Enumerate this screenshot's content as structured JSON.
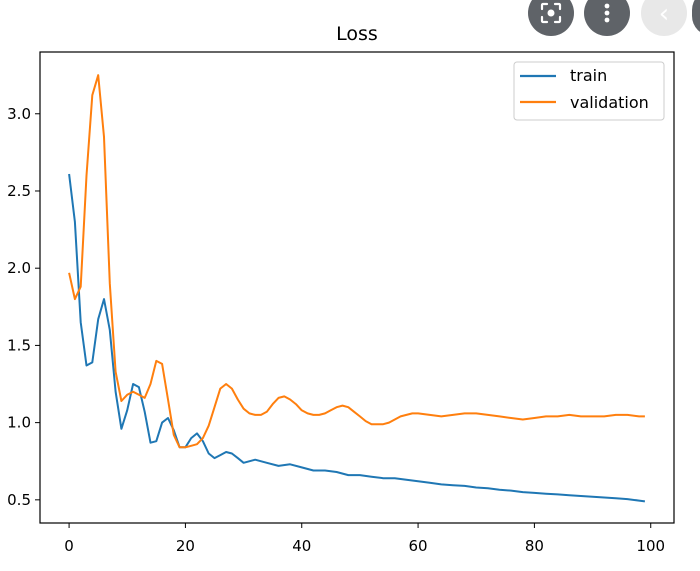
{
  "chart_data": {
    "type": "line",
    "title": "Loss",
    "xlabel": "",
    "ylabel": "",
    "xlim": [
      -5,
      104
    ],
    "ylim": [
      0.35,
      3.4
    ],
    "xticks": [
      0,
      20,
      40,
      60,
      80,
      100
    ],
    "yticks": [
      0.5,
      1.0,
      1.5,
      2.0,
      2.5,
      3.0
    ],
    "xtick_labels": [
      "0",
      "20",
      "40",
      "60",
      "80",
      "100"
    ],
    "ytick_labels": [
      "0.5",
      "1.0",
      "1.5",
      "2.0",
      "2.5",
      "3.0"
    ],
    "legend_position": "top-right",
    "grid": false,
    "series": [
      {
        "name": "train",
        "color": "#1f77b4",
        "x": [
          0,
          1,
          2,
          3,
          4,
          5,
          6,
          7,
          8,
          9,
          10,
          11,
          12,
          13,
          14,
          15,
          16,
          17,
          18,
          19,
          20,
          21,
          22,
          23,
          24,
          25,
          26,
          27,
          28,
          29,
          30,
          32,
          34,
          36,
          38,
          40,
          42,
          44,
          46,
          48,
          50,
          52,
          54,
          56,
          58,
          60,
          62,
          64,
          66,
          68,
          70,
          72,
          74,
          76,
          78,
          80,
          82,
          84,
          86,
          88,
          90,
          92,
          94,
          96,
          98,
          99
        ],
        "values": [
          2.61,
          2.3,
          1.65,
          1.37,
          1.39,
          1.67,
          1.8,
          1.6,
          1.2,
          0.96,
          1.08,
          1.25,
          1.23,
          1.07,
          0.87,
          0.88,
          1.0,
          1.03,
          0.95,
          0.84,
          0.84,
          0.9,
          0.93,
          0.88,
          0.8,
          0.77,
          0.79,
          0.81,
          0.8,
          0.77,
          0.74,
          0.76,
          0.74,
          0.72,
          0.73,
          0.71,
          0.69,
          0.69,
          0.68,
          0.66,
          0.66,
          0.65,
          0.64,
          0.64,
          0.63,
          0.62,
          0.61,
          0.6,
          0.595,
          0.59,
          0.58,
          0.575,
          0.565,
          0.56,
          0.55,
          0.545,
          0.54,
          0.535,
          0.53,
          0.525,
          0.52,
          0.515,
          0.51,
          0.505,
          0.495,
          0.49
        ]
      },
      {
        "name": "validation",
        "color": "#ff7f0e",
        "x": [
          0,
          1,
          2,
          3,
          4,
          5,
          6,
          7,
          8,
          9,
          10,
          11,
          12,
          13,
          14,
          15,
          16,
          17,
          18,
          19,
          20,
          21,
          22,
          23,
          24,
          25,
          26,
          27,
          28,
          29,
          30,
          31,
          32,
          33,
          34,
          35,
          36,
          37,
          38,
          39,
          40,
          41,
          42,
          43,
          44,
          45,
          46,
          47,
          48,
          49,
          50,
          51,
          52,
          53,
          54,
          55,
          56,
          57,
          58,
          59,
          60,
          62,
          64,
          66,
          68,
          70,
          72,
          74,
          76,
          78,
          80,
          82,
          84,
          86,
          88,
          90,
          92,
          94,
          96,
          98,
          99
        ],
        "values": [
          1.97,
          1.8,
          1.88,
          2.6,
          3.12,
          3.25,
          2.85,
          1.9,
          1.33,
          1.14,
          1.18,
          1.2,
          1.18,
          1.16,
          1.25,
          1.4,
          1.38,
          1.15,
          0.92,
          0.84,
          0.84,
          0.85,
          0.86,
          0.9,
          0.98,
          1.1,
          1.22,
          1.25,
          1.22,
          1.15,
          1.09,
          1.06,
          1.05,
          1.05,
          1.07,
          1.12,
          1.16,
          1.17,
          1.15,
          1.12,
          1.08,
          1.06,
          1.05,
          1.05,
          1.06,
          1.08,
          1.1,
          1.11,
          1.1,
          1.07,
          1.04,
          1.01,
          0.99,
          0.99,
          0.99,
          1.0,
          1.02,
          1.04,
          1.05,
          1.06,
          1.06,
          1.05,
          1.04,
          1.05,
          1.06,
          1.06,
          1.05,
          1.04,
          1.03,
          1.02,
          1.03,
          1.04,
          1.04,
          1.05,
          1.04,
          1.04,
          1.04,
          1.05,
          1.05,
          1.04,
          1.04
        ]
      }
    ]
  },
  "overlay": {
    "back_glyph": "‹"
  }
}
